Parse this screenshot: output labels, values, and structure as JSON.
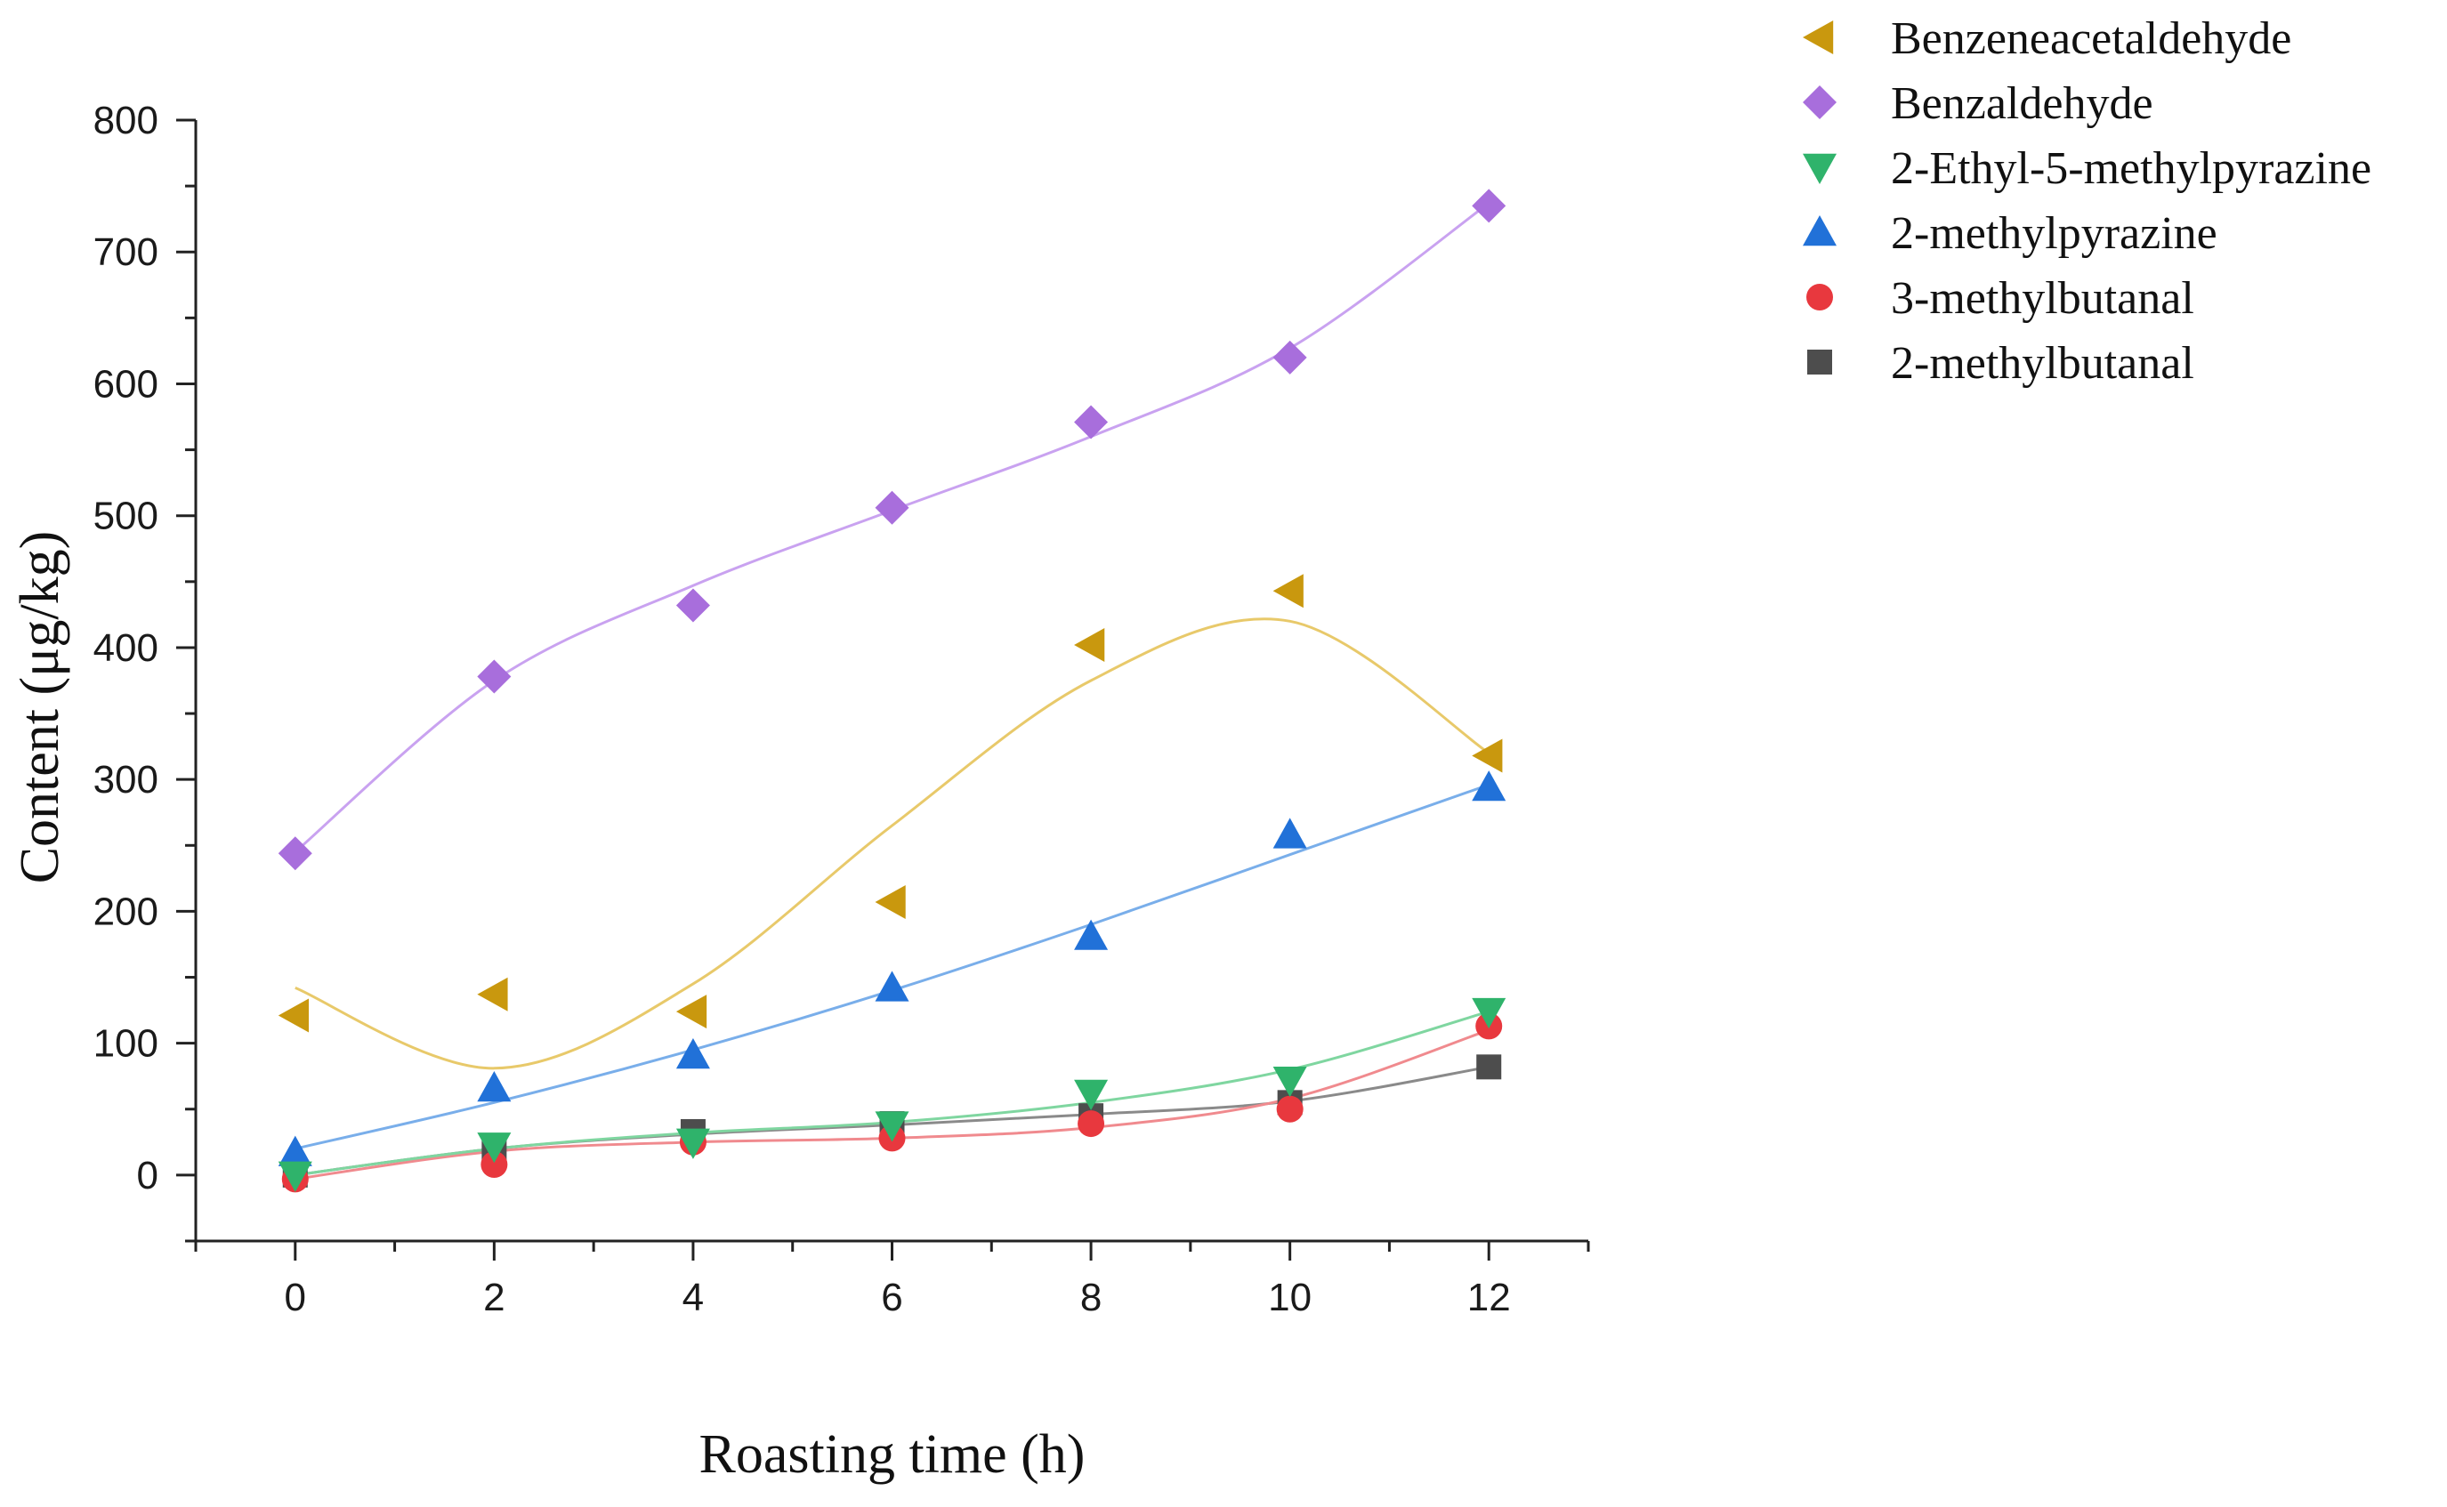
{
  "chart_data": {
    "type": "scatter",
    "title": "",
    "xlabel": "Roasting time (h)",
    "ylabel": "Content (μg/kg)",
    "xlim": [
      -1,
      13
    ],
    "ylim": [
      -50,
      800
    ],
    "xticks": [
      0,
      2,
      4,
      6,
      8,
      10,
      12
    ],
    "yticks": [
      0,
      100,
      200,
      300,
      400,
      500,
      600,
      700,
      800
    ],
    "xtick_labels": [
      "0",
      "2",
      "4",
      "6",
      "8",
      "10",
      "12"
    ],
    "ytick_labels": [
      "0",
      "100",
      "200",
      "300",
      "400",
      "500",
      "600",
      "700",
      "800"
    ],
    "x": [
      0,
      2,
      4,
      6,
      8,
      10,
      12
    ],
    "legend_position": "top-right outside",
    "series": [
      {
        "name": "Benzeneacetaldehyde",
        "marker": "triangle-left",
        "color": "#C9980E",
        "line_color": "#E8C96A",
        "values": [
          121,
          137,
          124,
          207,
          402,
          443,
          318
        ],
        "fit": [
          142,
          81,
          145,
          265,
          375,
          420,
          320
        ]
      },
      {
        "name": "Benzaldehyde",
        "marker": "diamond",
        "color": "#A86EDC",
        "line_color": "#C9A2F0",
        "values": [
          244,
          378,
          432,
          506,
          571,
          620,
          735
        ],
        "fit": [
          245,
          375,
          447,
          504,
          560,
          627,
          737
        ]
      },
      {
        "name": "2-Ethyl-5-methylpyrazine",
        "marker": "triangle-down",
        "color": "#2FB36B",
        "line_color": "#7FD6A0",
        "values": [
          0,
          22,
          25,
          38,
          62,
          72,
          124
        ],
        "fit": [
          0,
          20,
          32,
          40,
          55,
          80,
          124
        ]
      },
      {
        "name": "2-methylpyrazine",
        "marker": "triangle-up",
        "color": "#2171D8",
        "line_color": "#79AEEA",
        "values": [
          17,
          66,
          91,
          142,
          181,
          258,
          294
        ],
        "fit": [
          20,
          55,
          95,
          140,
          190,
          243,
          296
        ]
      },
      {
        "name": "3-methylbutanal",
        "marker": "circle",
        "color": "#E8383E",
        "line_color": "#F08A8E",
        "values": [
          -3,
          8,
          25,
          28,
          39,
          50,
          113
        ],
        "fit": [
          -3,
          18,
          25,
          28,
          36,
          58,
          110
        ]
      },
      {
        "name": "2-methylbutanal",
        "marker": "square",
        "color": "#4D4D4D",
        "line_color": "#8A8A8A",
        "values": [
          0,
          18,
          33,
          39,
          45,
          55,
          82
        ],
        "fit": [
          0,
          20,
          31,
          38,
          46,
          56,
          82
        ]
      }
    ]
  }
}
